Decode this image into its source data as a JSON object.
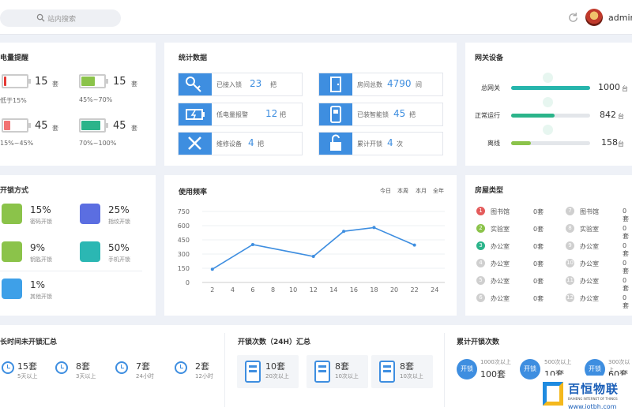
{
  "header": {
    "search_placeholder": "站内搜索",
    "username": "admin"
  },
  "battery": {
    "title": "电量提醒",
    "items": [
      {
        "count": "15",
        "unit": "套",
        "label": "低于15%",
        "color": "#e53935",
        "level": 0.1
      },
      {
        "count": "15",
        "unit": "套",
        "label": "45%~70%",
        "color": "#8bc34a",
        "level": 0.6
      },
      {
        "count": "45",
        "unit": "套",
        "label": "15%~45%",
        "color": "#f27272",
        "level": 0.3
      },
      {
        "count": "45",
        "unit": "套",
        "label": "70%~100%",
        "color": "#2bb48a",
        "level": 0.85
      }
    ]
  },
  "stats": {
    "title": "统计数据",
    "items": [
      {
        "label": "已接入锁",
        "value": "23",
        "unit": "把"
      },
      {
        "label": "房间总数",
        "value": "4790",
        "unit": "间"
      },
      {
        "label": "低电量报警",
        "value": "12",
        "unit": "把"
      },
      {
        "label": "已装智能锁",
        "value": "45",
        "unit": "把"
      },
      {
        "label": "维修设备",
        "value": "4",
        "unit": "把"
      },
      {
        "label": "累计开锁",
        "value": "4",
        "unit": "次"
      }
    ]
  },
  "gateway": {
    "title": "网关设备",
    "items": [
      {
        "label": "总网关",
        "value": "1000",
        "unit": "台",
        "color": "#26b5ac",
        "fill": 1.0
      },
      {
        "label": "正常运行",
        "value": "842",
        "unit": "台",
        "color": "#2bb48a",
        "fill": 0.55
      },
      {
        "label": "离线",
        "value": "158",
        "unit": "台",
        "color": "#8bc34a",
        "fill": 0.25
      }
    ]
  },
  "unlock": {
    "title": "开锁方式",
    "items": [
      {
        "pct": "15%",
        "label": "密码开锁",
        "color": "#8bc34a"
      },
      {
        "pct": "25%",
        "label": "指纹开锁",
        "color": "#5b6ee1"
      },
      {
        "pct": "9%",
        "label": "钥匙开锁",
        "color": "#8bc34a"
      },
      {
        "pct": "50%",
        "label": "手机开锁",
        "color": "#2bb7b3"
      },
      {
        "pct": "1%",
        "label": "其他开锁",
        "color": "#3ea0e8"
      }
    ]
  },
  "frequency": {
    "title": "使用频率",
    "filters": [
      "今日",
      "本周",
      "本月",
      "全年"
    ]
  },
  "chart_data": {
    "type": "line",
    "x": [
      2,
      6,
      12,
      15,
      18,
      22
    ],
    "y": [
      140,
      400,
      275,
      540,
      580,
      395
    ],
    "xticks": [
      "2",
      "4",
      "6",
      "8",
      "10",
      "12",
      "14",
      "16",
      "18",
      "20",
      "22",
      "24"
    ],
    "yticks": [
      "0",
      "150",
      "300",
      "450",
      "600",
      "750"
    ],
    "xlim": [
      1,
      25
    ],
    "ylim": [
      0,
      800
    ],
    "color": "#3e8ee0",
    "grid": "horizontal"
  },
  "rooms": {
    "title": "房屋类型",
    "items": [
      {
        "n": "1",
        "label": "图书馆",
        "count": "0套",
        "color": "#e45b5b"
      },
      {
        "n": "7",
        "label": "图书馆",
        "count": "0套",
        "color": "#cfcfcf"
      },
      {
        "n": "2",
        "label": "实验室",
        "count": "0套",
        "color": "#8bc34a"
      },
      {
        "n": "8",
        "label": "实验室",
        "count": "0套",
        "color": "#cfcfcf"
      },
      {
        "n": "3",
        "label": "办公室",
        "count": "0套",
        "color": "#2bb48a"
      },
      {
        "n": "9",
        "label": "办公室",
        "count": "0套",
        "color": "#cfcfcf"
      },
      {
        "n": "4",
        "label": "办公室",
        "count": "0套",
        "color": "#cfcfcf"
      },
      {
        "n": "10",
        "label": "办公室",
        "count": "0套",
        "color": "#cfcfcf"
      },
      {
        "n": "5",
        "label": "办公室",
        "count": "0套",
        "color": "#cfcfcf"
      },
      {
        "n": "11",
        "label": "办公室",
        "count": "0套",
        "color": "#cfcfcf"
      },
      {
        "n": "6",
        "label": "办公室",
        "count": "0套",
        "color": "#cfcfcf"
      },
      {
        "n": "12",
        "label": "办公室",
        "count": "0套",
        "color": "#cfcfcf"
      }
    ]
  },
  "idle": {
    "title": "长时间未开锁汇总",
    "items": [
      {
        "count": "15套",
        "label": "5天以上"
      },
      {
        "count": "8套",
        "label": "3天以上"
      },
      {
        "count": "7套",
        "label": "24小时"
      },
      {
        "count": "2套",
        "label": "12小时"
      }
    ]
  },
  "unlock24": {
    "title": "开锁次数（24H）汇总",
    "items": [
      {
        "count": "10套",
        "label": "20次以上"
      },
      {
        "count": "8套",
        "label": "10次以上"
      },
      {
        "count": "8套",
        "label": "10次以上"
      }
    ]
  },
  "cumulative": {
    "title": "累计开锁次数",
    "icon_text": "开锁",
    "items": [
      {
        "label": "1000次以上",
        "count": "100套"
      },
      {
        "label": "500次以上",
        "count": "10套"
      },
      {
        "label": "300次以上",
        "count": "60套"
      }
    ]
  },
  "watermark": {
    "brand": "百恒物联",
    "sub": "BAIHENG INTERNET OF THINGS",
    "url": "www.iotbh.com"
  }
}
